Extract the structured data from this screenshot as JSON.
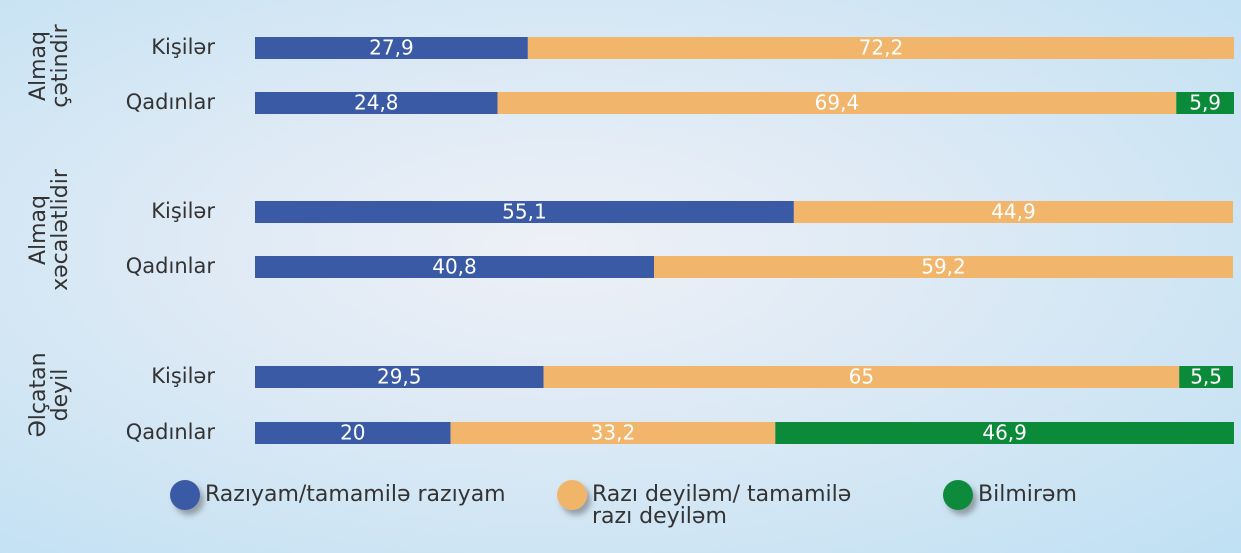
{
  "chart_data": {
    "type": "stacked-bar-horizontal",
    "groups": [
      "Almaq çətindir",
      "Almaq xəcalətlidir",
      "Əlçatan deyil"
    ],
    "categories": [
      "Kişilər",
      "Qadınlar",
      "Kişilər",
      "Qadınlar",
      "Kişilər",
      "Qadınlar"
    ],
    "xlim": [
      0,
      100
    ],
    "series": [
      {
        "name": "Razıyam/tamamilə razıyam",
        "color": "#3a5aa6",
        "values": [
          27.9,
          24.8,
          55.1,
          40.8,
          29.5,
          20
        ],
        "value_labels": [
          "27,9",
          "24,8",
          "55,1",
          "40,8",
          "29,5",
          "20"
        ]
      },
      {
        "name": "Razı deyiləm/ tamamilə razı deyiləm",
        "color": "#f1b56b",
        "values": [
          72.2,
          69.4,
          44.9,
          59.2,
          65,
          33.2
        ],
        "value_labels": [
          "72,2",
          "69,4",
          "44,9",
          "59,2",
          "65",
          "33,2"
        ]
      },
      {
        "name": "Bilmirəm",
        "color": "#0b8a3a",
        "values": [
          null,
          5.9,
          null,
          null,
          5.5,
          46.9
        ],
        "value_labels": [
          null,
          "5,9",
          null,
          null,
          "5,5",
          "46,9"
        ]
      }
    ],
    "legend": "bottom"
  }
}
